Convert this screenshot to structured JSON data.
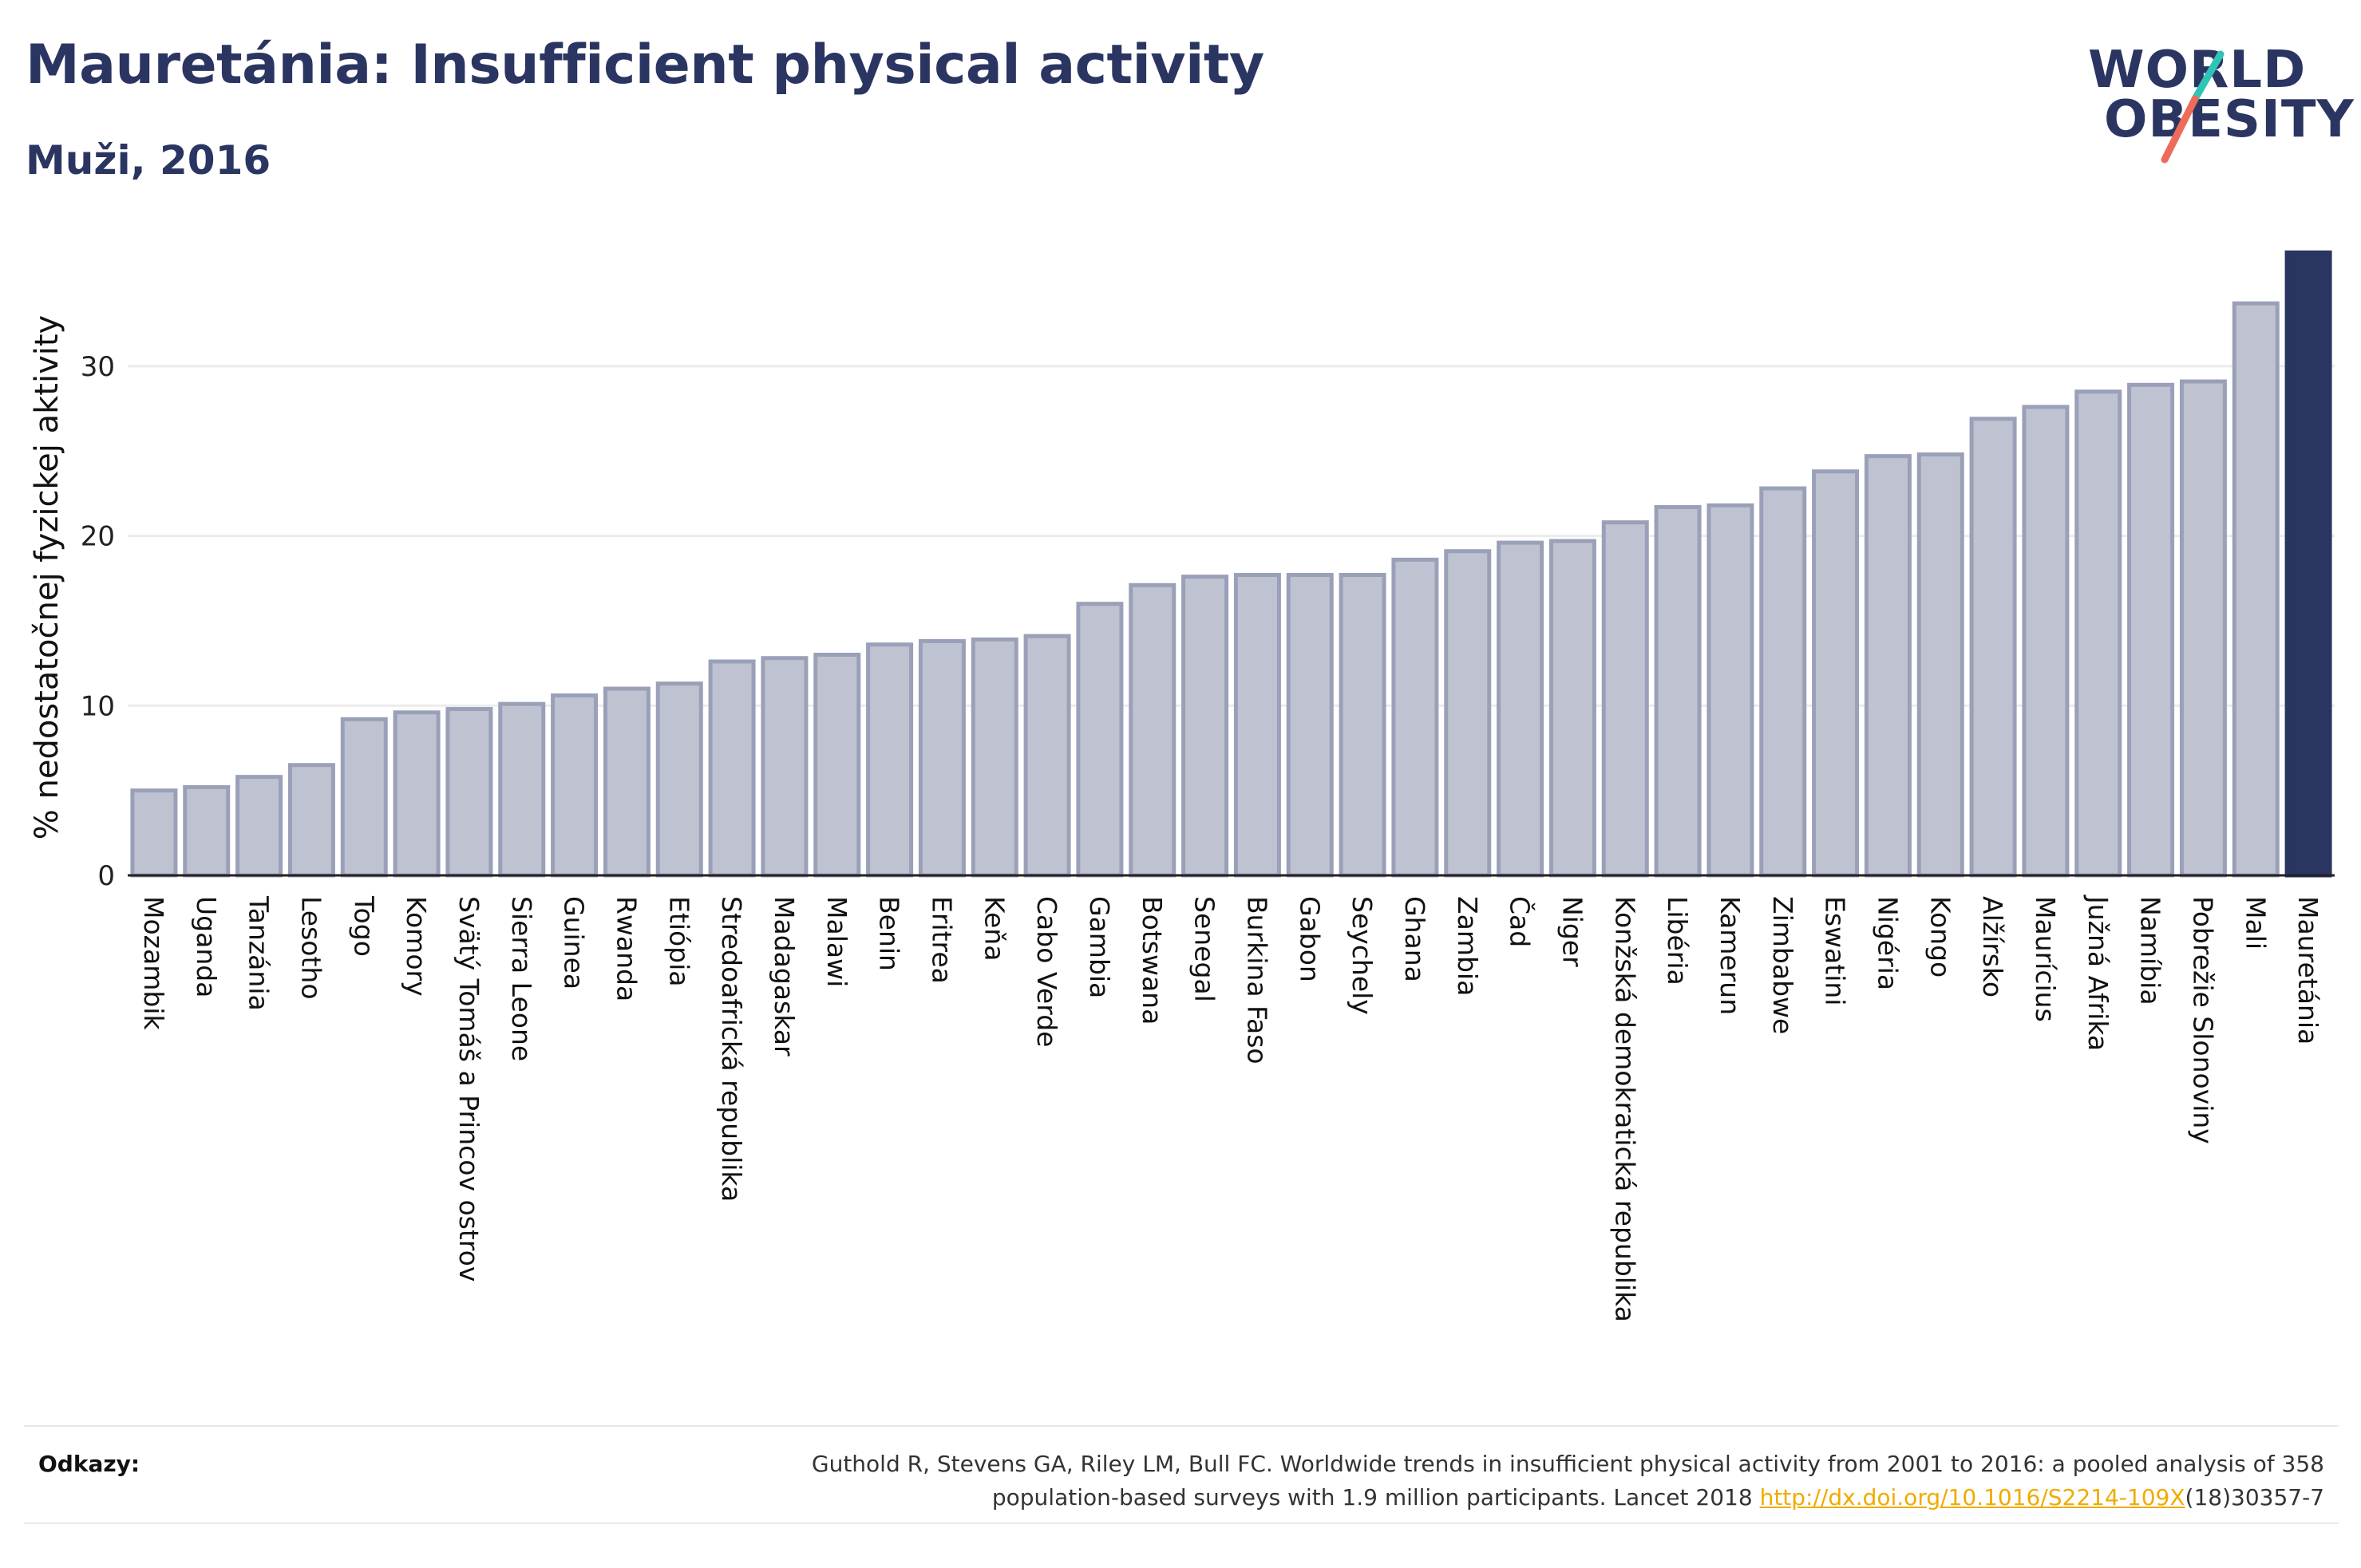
{
  "header": {
    "title": "Mauretánia: Insufficient physical activity",
    "subtitle": "Muži, 2016"
  },
  "logo": {
    "line1": "WORLD",
    "line2": "OBESITY"
  },
  "colors": {
    "bar_fill": "#bfc3d1",
    "bar_stroke": "#9aa0b8",
    "highlight": "#2b3561",
    "text": "#2b3561",
    "grid": "#ececec",
    "link": "#f0ab00",
    "logo_teal": "#2ec4b6",
    "logo_coral": "#ee6b5b"
  },
  "chart_data": {
    "type": "bar",
    "ylabel": "% nedostatočnej fyzickej aktivity",
    "ylim": [
      0,
      37
    ],
    "yticks": [
      0,
      10,
      20,
      30
    ],
    "grid": true,
    "highlight": "Mauretánia",
    "categories": [
      "Mozambik",
      "Uganda",
      "Tanzánia",
      "Lesotho",
      "Togo",
      "Komory",
      "Svätý Tomáš a Princov ostrov",
      "Sierra Leone",
      "Guinea",
      "Rwanda",
      "Etiópia",
      "Stredoafrická republika",
      "Madagaskar",
      "Malawi",
      "Benin",
      "Eritrea",
      "Keňa",
      "Cabo Verde",
      "Gambia",
      "Botswana",
      "Senegal",
      "Burkina Faso",
      "Gabon",
      "Seychely",
      "Ghana",
      "Zambia",
      "Čad",
      "Niger",
      "Konžská demokratická republika",
      "Libéria",
      "Kamerun",
      "Zimbabwe",
      "Eswatini",
      "Nigéria",
      "Kongo",
      "Alžírsko",
      "Maurícius",
      "Južná Afrika",
      "Namíbia",
      "Pobrežie Slonoviny",
      "Mali",
      "Mauretánia"
    ],
    "values": [
      5.0,
      5.2,
      5.8,
      6.5,
      9.2,
      9.6,
      9.8,
      10.1,
      10.6,
      11.0,
      11.3,
      12.6,
      12.8,
      13.0,
      13.6,
      13.8,
      13.9,
      14.1,
      16.0,
      17.1,
      17.6,
      17.7,
      17.7,
      17.7,
      18.6,
      19.1,
      19.6,
      19.7,
      20.8,
      21.7,
      21.8,
      22.8,
      23.8,
      24.7,
      24.8,
      26.9,
      27.6,
      28.5,
      28.9,
      29.1,
      33.7,
      36.7
    ]
  },
  "footer": {
    "ref_label": "Odkazy:",
    "ref_text_1": "Guthold R, Stevens GA, Riley LM, Bull FC. Worldwide trends in insufficient physical activity from 2001 to 2016: a pooled analysis of 358",
    "ref_text_2": "population-based surveys with 1.9 million participants. Lancet 2018 ",
    "ref_link": "http://dx.doi.org/10.1016/S2214-109X",
    "ref_suffix": "(18)30357-7"
  }
}
